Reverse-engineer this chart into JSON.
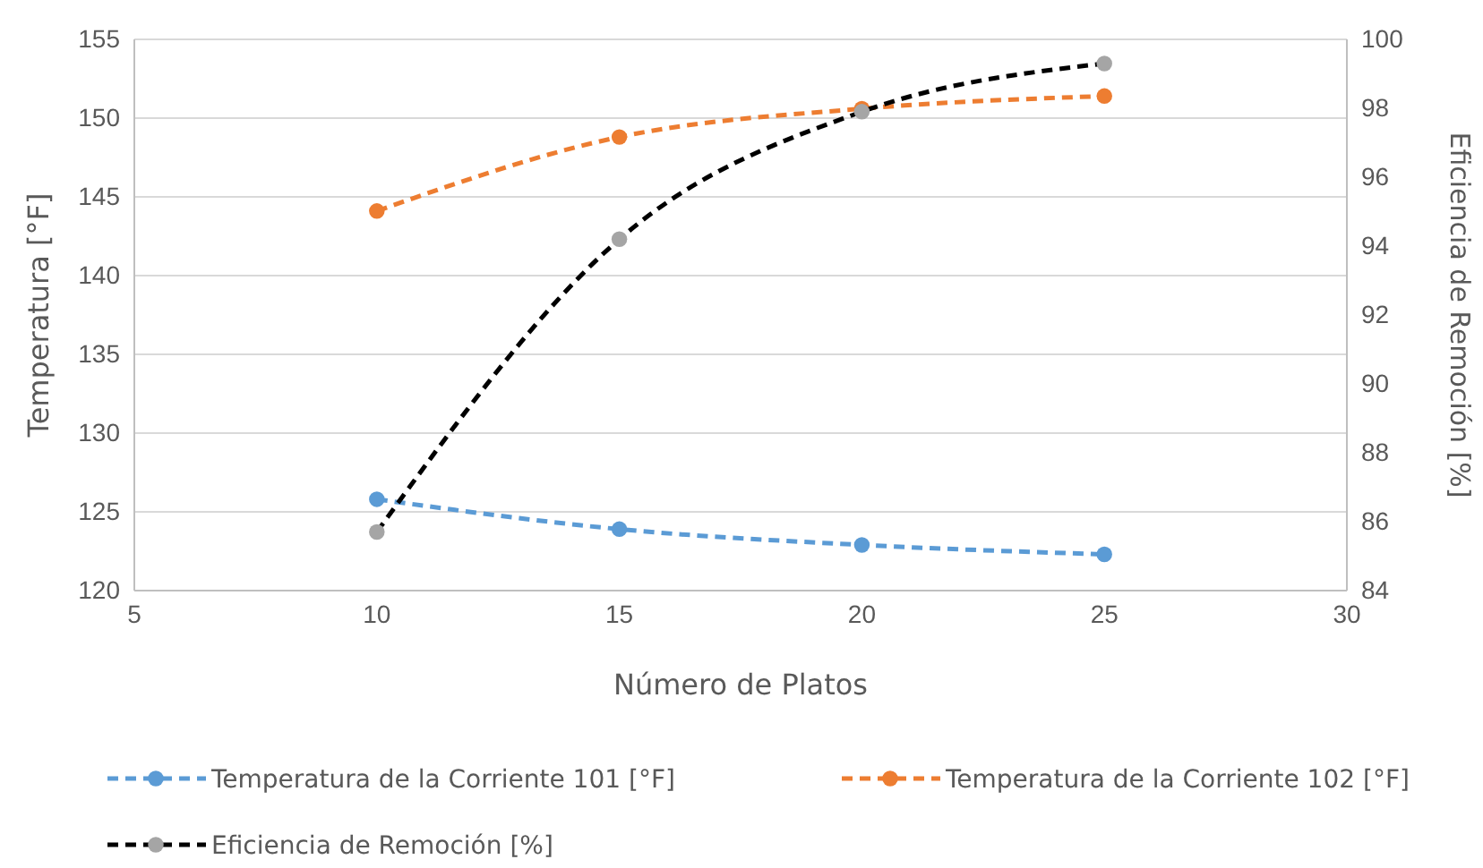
{
  "chart_data": {
    "type": "line",
    "xlabel": "Número de Platos",
    "ylabel": "Temperatura [°F]",
    "y2label": "Eficiencia de Remoción [%]",
    "x": [
      10,
      15,
      20,
      25
    ],
    "xlim": [
      5,
      30
    ],
    "xticks": [
      5,
      10,
      15,
      20,
      25,
      30
    ],
    "ylim": [
      120,
      155
    ],
    "yticks": [
      120,
      125,
      130,
      135,
      140,
      145,
      150,
      155
    ],
    "y2lim": [
      84,
      100
    ],
    "y2ticks": [
      84,
      86,
      88,
      90,
      92,
      94,
      96,
      98,
      100
    ],
    "grid": "y",
    "legend": "bottom",
    "marker": "circle",
    "line_style": "dashed",
    "series": [
      {
        "name": "Temperatura de la Corriente 101 [°F]",
        "color": "#5b9bd5",
        "values": [
          125.8,
          123.9,
          122.9,
          122.3
        ]
      },
      {
        "name": "Temperatura de la Corriente 102 [°F]",
        "color": "#ed7d31",
        "values": [
          144.1,
          148.8,
          150.6,
          151.4
        ]
      },
      {
        "name": "Eficiencia  de Remoción [%]",
        "color": "#000000",
        "colors": [
          "#a5a5a5",
          "#a5a5a5",
          "#a5a5a5",
          "#a5a5a5"
        ],
        "axis": "y2",
        "values": [
          85.7,
          94.2,
          97.9,
          99.3
        ]
      }
    ]
  }
}
